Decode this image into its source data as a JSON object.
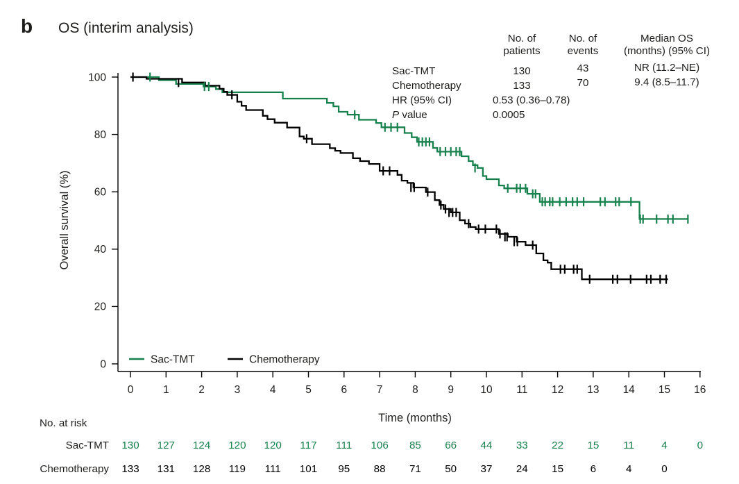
{
  "panel_label": "b",
  "title": "OS (interim analysis)",
  "colors": {
    "sac_tmt": "#16814C",
    "chemotherapy": "#000000"
  },
  "stats_table": {
    "col_headers": {
      "patients_line1": "No. of",
      "patients_line2": "patients",
      "events_line1": "No. of",
      "events_line2": "events",
      "median_line1": "Median OS",
      "median_line2": "(months) (95% CI)"
    },
    "rows": [
      {
        "label": "Sac-TMT",
        "patients": "130",
        "events": "43",
        "median": "NR (11.2–NE)"
      },
      {
        "label": "Chemotherapy",
        "patients": "133",
        "events": "70",
        "median": "9.4 (8.5–11.7)"
      }
    ],
    "hr_label": "HR (95% CI)",
    "hr_value": "0.53 (0.36–0.78)",
    "p_label_italic": "P",
    "p_label_rest": " value",
    "p_value": "0.0005"
  },
  "chart_data": {
    "type": "line",
    "subtype": "kaplan-meier-step",
    "title": "OS (interim analysis)",
    "xlabel": "Time (months)",
    "ylabel": "Overall survival (%)",
    "xlim": [
      0,
      16
    ],
    "ylim": [
      0,
      100
    ],
    "xticks": [
      0,
      1,
      2,
      3,
      4,
      5,
      6,
      7,
      8,
      9,
      10,
      11,
      12,
      13,
      14,
      15,
      16
    ],
    "yticks": [
      0,
      20,
      40,
      60,
      80,
      100
    ],
    "grid": false,
    "legend_position": "inside-bottom-left",
    "series": [
      {
        "name": "Sac-TMT",
        "color": "#16814C",
        "end_time": 15.68,
        "steps": [
          [
            0,
            100
          ],
          [
            0.8,
            98.9
          ],
          [
            1.28,
            97.6
          ],
          [
            2.05,
            96.7
          ],
          [
            2.4,
            95.8
          ],
          [
            2.58,
            94.7
          ],
          [
            4.28,
            92.5
          ],
          [
            5.52,
            91.0
          ],
          [
            5.7,
            89.8
          ],
          [
            5.85,
            87.9
          ],
          [
            6.1,
            86.9
          ],
          [
            6.42,
            85.1
          ],
          [
            6.9,
            84.0
          ],
          [
            7.05,
            82.5
          ],
          [
            7.7,
            80.5
          ],
          [
            7.9,
            79.0
          ],
          [
            8.05,
            77.4
          ],
          [
            8.5,
            75.3
          ],
          [
            8.62,
            74.0
          ],
          [
            9.3,
            72.4
          ],
          [
            9.5,
            70.7
          ],
          [
            9.62,
            69.3
          ],
          [
            9.75,
            68.3
          ],
          [
            9.9,
            65.5
          ],
          [
            10.0,
            64.4
          ],
          [
            10.35,
            62.2
          ],
          [
            10.5,
            61.2
          ],
          [
            11.15,
            59.3
          ],
          [
            11.5,
            56.5
          ],
          [
            14.3,
            50.5
          ]
        ],
        "censors": [
          [
            0.55,
            100
          ],
          [
            2.08,
            96.7
          ],
          [
            2.2,
            96.7
          ],
          [
            6.3,
            86.9
          ],
          [
            7.15,
            82.5
          ],
          [
            7.32,
            82.5
          ],
          [
            7.5,
            82.5
          ],
          [
            8.1,
            77.4
          ],
          [
            8.2,
            77.4
          ],
          [
            8.3,
            77.4
          ],
          [
            8.4,
            77.4
          ],
          [
            8.7,
            74.0
          ],
          [
            8.85,
            74.0
          ],
          [
            9.0,
            74.0
          ],
          [
            9.15,
            74.0
          ],
          [
            9.25,
            74.0
          ],
          [
            9.68,
            68.3
          ],
          [
            10.6,
            61.2
          ],
          [
            10.85,
            61.2
          ],
          [
            10.95,
            61.2
          ],
          [
            11.1,
            61.2
          ],
          [
            11.3,
            59.3
          ],
          [
            11.38,
            59.3
          ],
          [
            11.57,
            56.5
          ],
          [
            11.65,
            56.5
          ],
          [
            11.78,
            56.5
          ],
          [
            11.86,
            56.5
          ],
          [
            12.06,
            56.5
          ],
          [
            12.24,
            56.5
          ],
          [
            12.42,
            56.5
          ],
          [
            12.55,
            56.5
          ],
          [
            12.73,
            56.5
          ],
          [
            13.2,
            56.5
          ],
          [
            13.33,
            56.5
          ],
          [
            13.63,
            56.5
          ],
          [
            13.73,
            56.5
          ],
          [
            14.06,
            56.5
          ],
          [
            14.32,
            50.5
          ],
          [
            14.4,
            50.5
          ],
          [
            14.78,
            50.5
          ],
          [
            15.1,
            50.5
          ],
          [
            15.24,
            50.5
          ],
          [
            15.66,
            50.5
          ]
        ]
      },
      {
        "name": "Chemotherapy",
        "color": "#000000",
        "end_time": 15.1,
        "steps": [
          [
            0,
            100
          ],
          [
            0.45,
            99.4
          ],
          [
            1.45,
            98.1
          ],
          [
            2.1,
            97.0
          ],
          [
            2.5,
            95.9
          ],
          [
            2.62,
            94.9
          ],
          [
            2.72,
            93.8
          ],
          [
            3.0,
            91.4
          ],
          [
            3.12,
            90.0
          ],
          [
            3.25,
            88.5
          ],
          [
            3.72,
            86.5
          ],
          [
            3.85,
            85.3
          ],
          [
            4.05,
            84.1
          ],
          [
            4.4,
            82.4
          ],
          [
            4.75,
            79.3
          ],
          [
            4.87,
            78.5
          ],
          [
            5.1,
            76.6
          ],
          [
            5.6,
            75.2
          ],
          [
            5.75,
            74.3
          ],
          [
            5.9,
            73.5
          ],
          [
            6.25,
            71.7
          ],
          [
            6.45,
            70.7
          ],
          [
            6.7,
            69.7
          ],
          [
            7.0,
            67.3
          ],
          [
            7.5,
            65.9
          ],
          [
            7.62,
            63.9
          ],
          [
            7.78,
            63.1
          ],
          [
            7.95,
            61.5
          ],
          [
            8.3,
            59.9
          ],
          [
            8.55,
            57.1
          ],
          [
            8.68,
            55.4
          ],
          [
            8.8,
            54.0
          ],
          [
            9.0,
            52.8
          ],
          [
            9.25,
            50.1
          ],
          [
            9.4,
            48.9
          ],
          [
            9.55,
            47.7
          ],
          [
            9.7,
            47.0
          ],
          [
            10.35,
            45.3
          ],
          [
            10.6,
            44.3
          ],
          [
            10.85,
            42.6
          ],
          [
            11.1,
            41.4
          ],
          [
            11.4,
            38.5
          ],
          [
            11.6,
            36.1
          ],
          [
            11.72,
            35.3
          ],
          [
            11.82,
            33.0
          ],
          [
            12.68,
            29.5
          ]
        ],
        "censors": [
          [
            0.07,
            100
          ],
          [
            1.35,
            98.1
          ],
          [
            2.85,
            93.8
          ],
          [
            4.95,
            78.5
          ],
          [
            7.1,
            67.3
          ],
          [
            7.28,
            67.3
          ],
          [
            7.88,
            61.5
          ],
          [
            7.97,
            61.5
          ],
          [
            8.35,
            59.9
          ],
          [
            8.72,
            55.4
          ],
          [
            8.85,
            54.0
          ],
          [
            8.95,
            52.8
          ],
          [
            9.05,
            52.8
          ],
          [
            9.15,
            52.8
          ],
          [
            9.5,
            48.9
          ],
          [
            9.78,
            47.0
          ],
          [
            9.97,
            47.0
          ],
          [
            10.28,
            47.0
          ],
          [
            10.38,
            45.3
          ],
          [
            10.52,
            44.3
          ],
          [
            10.58,
            44.3
          ],
          [
            10.78,
            42.6
          ],
          [
            10.87,
            42.6
          ],
          [
            11.3,
            41.4
          ],
          [
            12.08,
            33.0
          ],
          [
            12.2,
            33.0
          ],
          [
            12.45,
            33.0
          ],
          [
            12.55,
            33.0
          ],
          [
            12.9,
            29.5
          ],
          [
            13.55,
            29.5
          ],
          [
            13.68,
            29.5
          ],
          [
            14.05,
            29.5
          ],
          [
            14.5,
            29.5
          ],
          [
            14.62,
            29.5
          ],
          [
            14.88,
            29.5
          ],
          [
            15.05,
            29.5
          ]
        ]
      }
    ]
  },
  "risk_table": {
    "title": "No. at risk",
    "times": [
      0,
      1,
      2,
      3,
      4,
      5,
      6,
      7,
      8,
      9,
      10,
      11,
      12,
      13,
      14,
      15,
      16
    ],
    "rows": [
      {
        "label": "Sac-TMT",
        "color": "#16814C",
        "values": [
          130,
          127,
          124,
          120,
          120,
          117,
          111,
          106,
          85,
          66,
          44,
          33,
          22,
          15,
          11,
          4,
          0
        ]
      },
      {
        "label": "Chemotherapy",
        "color": "#000000",
        "values": [
          133,
          131,
          128,
          119,
          111,
          101,
          95,
          88,
          71,
          50,
          37,
          24,
          15,
          6,
          4,
          0
        ]
      }
    ]
  }
}
